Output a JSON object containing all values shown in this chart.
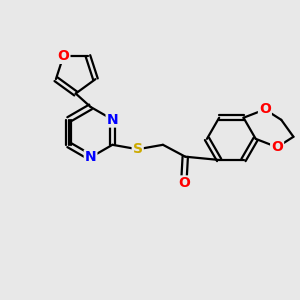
{
  "background_color": "#e8e8e8",
  "bond_color": "#000000",
  "bond_width": 1.6,
  "atom_colors": {
    "O": "#ff0000",
    "N": "#0000ff",
    "S": "#ccaa00",
    "C": "#000000"
  },
  "font_size_atom": 10,
  "figure_size": [
    3.0,
    3.0
  ],
  "dpi": 100
}
